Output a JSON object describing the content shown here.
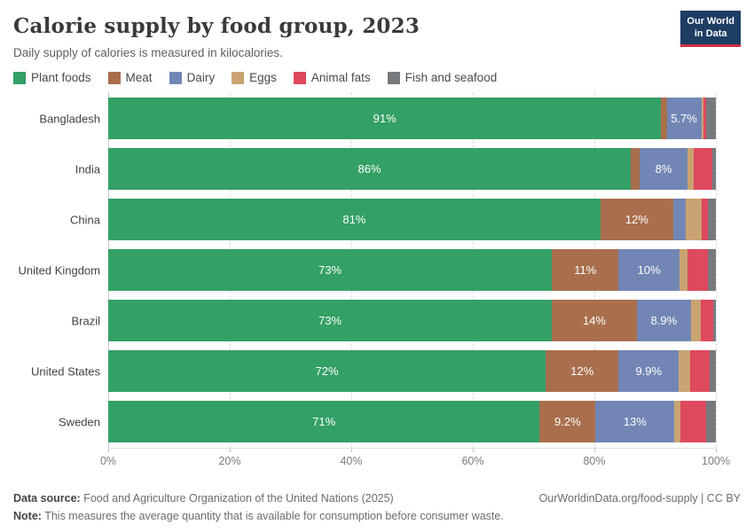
{
  "header": {
    "title": "Calorie supply by food group, 2023",
    "subtitle": "Daily supply of calories is measured in kilocalories.",
    "logo_line1": "Our World",
    "logo_line2": "in Data"
  },
  "chart_data": {
    "type": "bar",
    "orientation": "horizontal",
    "stacked": true,
    "unit": "%",
    "categories": [
      "Bangladesh",
      "India",
      "China",
      "United Kingdom",
      "Brazil",
      "United States",
      "Sweden"
    ],
    "series": [
      {
        "name": "Plant foods",
        "color": "#33a066",
        "values": [
          91,
          86,
          81,
          73,
          73,
          72,
          71
        ],
        "labels": [
          "91%",
          "86%",
          "81%",
          "73%",
          "73%",
          "72%",
          "71%"
        ]
      },
      {
        "name": "Meat",
        "color": "#a96f4d",
        "values": [
          0.9,
          1.4,
          12,
          11,
          14,
          12,
          9.2
        ],
        "labels": [
          "",
          "",
          "12%",
          "11%",
          "14%",
          "12%",
          "9.2%"
        ]
      },
      {
        "name": "Dairy",
        "color": "#7286b5",
        "values": [
          5.7,
          8,
          2,
          10,
          8.9,
          9.9,
          13
        ],
        "labels": [
          "5.7%",
          "8%",
          "",
          "10%",
          "8.9%",
          "9.9%",
          "13%"
        ]
      },
      {
        "name": "Eggs",
        "color": "#c9a472",
        "values": [
          0.4,
          0.9,
          2.6,
          1.4,
          1.6,
          1.8,
          1.0
        ],
        "labels": [
          "",
          "",
          "",
          "",
          "",
          "",
          ""
        ]
      },
      {
        "name": "Animal fats",
        "color": "#de495d",
        "values": [
          0.4,
          3.1,
          1.1,
          3.3,
          2.1,
          3.3,
          4.2
        ],
        "labels": [
          "",
          "",
          "",
          "",
          "",
          "",
          ""
        ]
      },
      {
        "name": "Fish and seafood",
        "color": "#767a7e",
        "values": [
          1.6,
          0.6,
          1.3,
          1.3,
          0.4,
          1.0,
          1.6
        ],
        "labels": [
          "",
          "",
          "",
          "",
          "",
          "",
          ""
        ]
      }
    ],
    "x_axis": {
      "tick_values": [
        0,
        20,
        40,
        60,
        80,
        100
      ],
      "tick_labels": [
        "0%",
        "20%",
        "40%",
        "60%",
        "80%",
        "100%"
      ],
      "range": [
        0,
        100
      ],
      "gridlines": "dashed"
    },
    "legend_position": "top"
  },
  "footer": {
    "datasource_label": "Data source:",
    "datasource_text": " Food and Agriculture Organization of the United Nations (2025)",
    "note_label": "Note:",
    "note_text": " This measures the average quantity that is available for consumption before consumer waste.",
    "credit": "OurWorldinData.org/food-supply | CC BY"
  }
}
